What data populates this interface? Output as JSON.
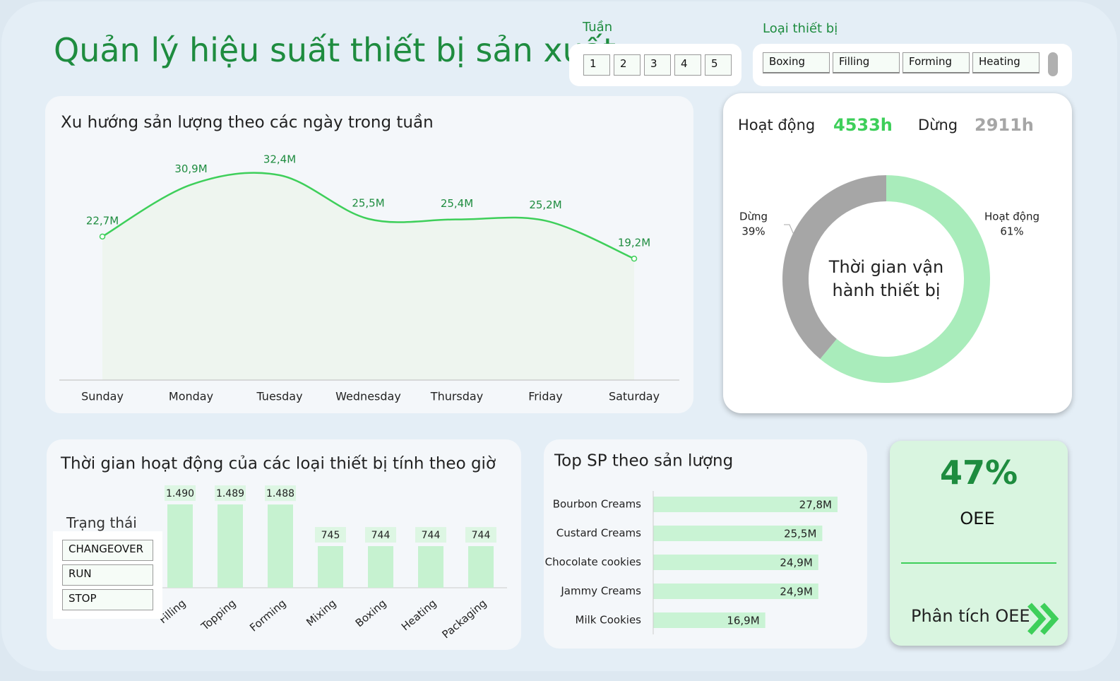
{
  "header": {
    "title": "Quản lý hiệu suất thiết bị sản xuất"
  },
  "week_slicer": {
    "label": "Tuần",
    "items": [
      "1",
      "2",
      "3",
      "4",
      "5"
    ]
  },
  "equipment_slicer": {
    "label": "Loại thiết bị",
    "items": [
      "Boxing",
      "Filling",
      "Forming",
      "Heating"
    ]
  },
  "runtime": {
    "items": [
      {
        "label": "Hoạt động",
        "value": "4533h"
      },
      {
        "label": "Dừng",
        "value": "2911h"
      }
    ]
  },
  "status_slicer": {
    "label": "Trạng thái",
    "items": [
      "CHANGEOVER",
      "RUN",
      "STOP"
    ]
  },
  "chart_data": [
    {
      "type": "line",
      "title": "Xu hướng sản lượng theo các ngày trong tuần",
      "categories": [
        "Sunday",
        "Monday",
        "Tuesday",
        "Wednesday",
        "Thursday",
        "Friday",
        "Saturday"
      ],
      "values": [
        22.7,
        30.9,
        32.4,
        25.5,
        25.4,
        25.2,
        19.2
      ],
      "value_labels": [
        "22,7M",
        "30,9M",
        "32,4M",
        "25,5M",
        "25,4M",
        "25,2M",
        "19,2M"
      ],
      "color": "#3ecf5a"
    },
    {
      "type": "donut",
      "title": "Thời gian vận hành thiết bị",
      "categories": [
        "Hoạt động",
        "Dừng"
      ],
      "values": [
        61,
        39
      ],
      "value_labels": [
        "61%",
        "39%"
      ],
      "colors": [
        "#a9ecbb",
        "#a6a6a6"
      ]
    },
    {
      "type": "bar",
      "title": "Thời gian hoạt động của các loại thiết bị tính theo giờ",
      "categories": [
        "Filling",
        "Topping",
        "Forming",
        "Mixing",
        "Boxing",
        "Heating",
        "Packaging"
      ],
      "values": [
        1490,
        1489,
        1488,
        745,
        744,
        744,
        744
      ],
      "value_labels": [
        "1.490",
        "1.489",
        "1.488",
        "745",
        "744",
        "744",
        "744"
      ],
      "color": "#c6f2d0"
    },
    {
      "type": "hbar",
      "title": "Top SP theo sản lượng",
      "categories": [
        "Bourbon Creams",
        "Custard Creams",
        "Chocolate cookies",
        "Jammy Creams",
        "Milk Cookies"
      ],
      "values": [
        27.8,
        25.5,
        24.9,
        24.9,
        16.9
      ],
      "value_labels": [
        "27,8M",
        "25,5M",
        "24,9M",
        "24,9M",
        "16,9M"
      ],
      "color": "#c9f3d4"
    }
  ],
  "kpi": {
    "value": "47%",
    "label": "OEE",
    "link": "Phân tích OEE"
  }
}
